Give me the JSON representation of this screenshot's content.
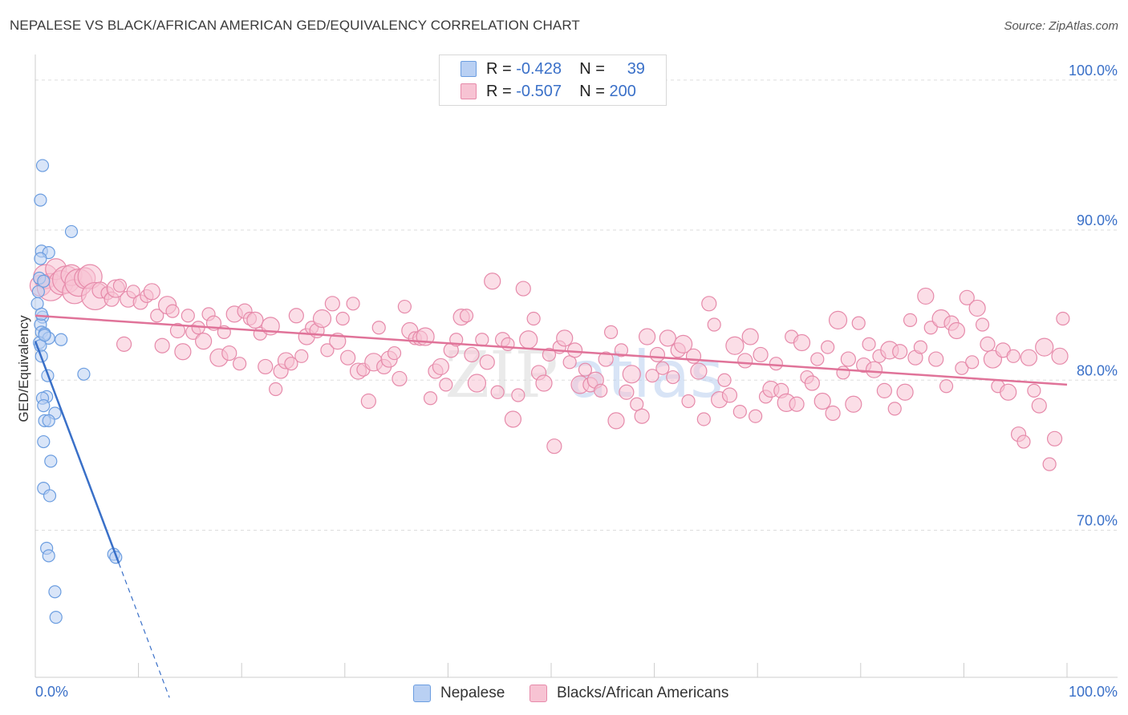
{
  "title": "NEPALESE VS BLACK/AFRICAN AMERICAN GED/EQUIVALENCY CORRELATION CHART",
  "source": "Source: ZipAtlas.com",
  "colors": {
    "blue": "#6b9de0",
    "blue_fill": "#b9d0f3",
    "blue_line": "#3a70c8",
    "pink": "#e68aaa",
    "pink_fill": "#f7c3d3",
    "pink_line": "#e07399",
    "axis_label": "#3a70c8",
    "grid": "#dddddd"
  },
  "legend_top": [
    {
      "r_label": "R =",
      "r_value": "-0.428",
      "n_label": "N =",
      "n_value": "39",
      "color_key": "blue"
    },
    {
      "r_label": "R =",
      "r_value": "-0.507",
      "n_label": "N =",
      "n_value": "200",
      "color_key": "pink"
    }
  ],
  "legend_bottom": [
    {
      "label": "Nepalese",
      "color_key": "blue"
    },
    {
      "label": "Blacks/African Americans",
      "color_key": "pink"
    }
  ],
  "watermark": {
    "zip": "ZIP",
    "atlas": "atlas"
  },
  "chart_data": {
    "type": "scatter",
    "ylabel": "GED/Equivalency",
    "xlabel": "",
    "x_tick_labels": {
      "left": "0.0%",
      "right": "100.0%"
    },
    "y_ticks": [
      {
        "value": 100,
        "label": "100.0%"
      },
      {
        "value": 90,
        "label": "90.0%"
      },
      {
        "value": 80,
        "label": "80.0%"
      },
      {
        "value": 70,
        "label": "70.0%"
      }
    ],
    "xlim": [
      0,
      100
    ],
    "ylim": [
      60.2,
      101.7
    ],
    "grid": "horizontal dashed",
    "legend_placement": "top-center",
    "series": [
      {
        "name": "Nepalese",
        "color_key": "blue",
        "r": -0.428,
        "n": 39,
        "trend": {
          "x0": 0,
          "y0": 82.6,
          "x1": 8.1,
          "y1": 67.8,
          "dash_to_x": 13.0
        },
        "points": [
          [
            0.7,
            94.3
          ],
          [
            0.5,
            92.0
          ],
          [
            3.5,
            89.9
          ],
          [
            0.6,
            88.6
          ],
          [
            1.3,
            88.5
          ],
          [
            0.5,
            88.1
          ],
          [
            0.4,
            86.8
          ],
          [
            0.8,
            86.6
          ],
          [
            0.3,
            85.9
          ],
          [
            0.2,
            85.1
          ],
          [
            0.7,
            84.2
          ],
          [
            0.5,
            83.7
          ],
          [
            0.6,
            83.2
          ],
          [
            0.9,
            83.1
          ],
          [
            1.3,
            82.8
          ],
          [
            2.5,
            82.7
          ],
          [
            0.4,
            82.5
          ],
          [
            0.5,
            82.3
          ],
          [
            0.6,
            81.6
          ],
          [
            1.2,
            80.3
          ],
          [
            4.7,
            80.4
          ],
          [
            1.1,
            78.9
          ],
          [
            0.7,
            78.8
          ],
          [
            0.8,
            78.3
          ],
          [
            1.9,
            77.8
          ],
          [
            0.9,
            77.3
          ],
          [
            1.3,
            77.3
          ],
          [
            0.8,
            75.9
          ],
          [
            1.5,
            74.6
          ],
          [
            0.8,
            72.8
          ],
          [
            1.4,
            72.3
          ],
          [
            1.1,
            68.8
          ],
          [
            1.3,
            68.3
          ],
          [
            7.6,
            68.4
          ],
          [
            7.8,
            68.2
          ],
          [
            1.9,
            65.9
          ],
          [
            2.0,
            64.2
          ],
          [
            0.9,
            83.0
          ],
          [
            0.6,
            84.4
          ]
        ]
      },
      {
        "name": "Blacks/African Americans",
        "color_key": "pink",
        "r": -0.507,
        "n": 200,
        "trend": {
          "x0": 0,
          "y0": 84.3,
          "x1": 100,
          "y1": 79.7
        },
        "points": [
          [
            0.5,
            86.3
          ],
          [
            1.0,
            86.9
          ],
          [
            1.5,
            86.2
          ],
          [
            2.0,
            87.4
          ],
          [
            2.5,
            86.5
          ],
          [
            3.0,
            86.7
          ],
          [
            3.5,
            87.0
          ],
          [
            3.8,
            85.9
          ],
          [
            4.2,
            86.5
          ],
          [
            4.8,
            86.8
          ],
          [
            5.3,
            86.9
          ],
          [
            5.8,
            85.6
          ],
          [
            6.3,
            86.0
          ],
          [
            7.0,
            85.8
          ],
          [
            7.4,
            85.4
          ],
          [
            7.8,
            86.1
          ],
          [
            8.2,
            86.3
          ],
          [
            8.6,
            82.4
          ],
          [
            9.0,
            85.4
          ],
          [
            9.5,
            85.9
          ],
          [
            10.2,
            85.2
          ],
          [
            10.8,
            85.6
          ],
          [
            11.3,
            85.9
          ],
          [
            11.8,
            84.3
          ],
          [
            12.3,
            82.3
          ],
          [
            12.8,
            85.0
          ],
          [
            13.3,
            84.6
          ],
          [
            13.8,
            83.3
          ],
          [
            14.3,
            81.9
          ],
          [
            14.8,
            84.3
          ],
          [
            15.3,
            83.2
          ],
          [
            15.8,
            83.5
          ],
          [
            16.3,
            82.6
          ],
          [
            16.8,
            84.4
          ],
          [
            17.3,
            83.8
          ],
          [
            17.8,
            81.5
          ],
          [
            18.3,
            83.2
          ],
          [
            18.8,
            81.8
          ],
          [
            19.3,
            84.4
          ],
          [
            19.8,
            81.1
          ],
          [
            20.3,
            84.6
          ],
          [
            20.8,
            84.1
          ],
          [
            21.3,
            84.0
          ],
          [
            21.8,
            83.1
          ],
          [
            22.3,
            80.9
          ],
          [
            22.8,
            83.6
          ],
          [
            23.3,
            79.4
          ],
          [
            23.8,
            80.6
          ],
          [
            24.3,
            81.3
          ],
          [
            24.8,
            81.1
          ],
          [
            25.3,
            84.3
          ],
          [
            25.8,
            81.6
          ],
          [
            26.3,
            82.9
          ],
          [
            26.8,
            83.5
          ],
          [
            27.3,
            83.3
          ],
          [
            27.8,
            84.1
          ],
          [
            28.3,
            82.0
          ],
          [
            28.8,
            85.1
          ],
          [
            29.3,
            82.6
          ],
          [
            29.8,
            84.1
          ],
          [
            30.3,
            81.5
          ],
          [
            30.8,
            85.1
          ],
          [
            31.3,
            80.6
          ],
          [
            31.8,
            80.7
          ],
          [
            32.3,
            78.6
          ],
          [
            32.8,
            81.2
          ],
          [
            33.3,
            83.5
          ],
          [
            33.8,
            80.9
          ],
          [
            34.3,
            81.4
          ],
          [
            34.8,
            81.8
          ],
          [
            35.3,
            80.1
          ],
          [
            35.8,
            84.9
          ],
          [
            36.3,
            83.3
          ],
          [
            36.8,
            82.8
          ],
          [
            37.3,
            82.8
          ],
          [
            37.8,
            82.9
          ],
          [
            38.3,
            78.8
          ],
          [
            38.8,
            80.6
          ],
          [
            39.3,
            80.9
          ],
          [
            39.8,
            79.7
          ],
          [
            40.3,
            82.0
          ],
          [
            40.8,
            82.7
          ],
          [
            41.3,
            84.2
          ],
          [
            41.8,
            84.3
          ],
          [
            42.3,
            81.7
          ],
          [
            42.8,
            79.8
          ],
          [
            43.3,
            82.7
          ],
          [
            43.8,
            81.2
          ],
          [
            44.3,
            86.6
          ],
          [
            44.8,
            79.2
          ],
          [
            45.3,
            82.7
          ],
          [
            45.8,
            82.4
          ],
          [
            46.3,
            77.4
          ],
          [
            46.8,
            79.0
          ],
          [
            47.3,
            86.1
          ],
          [
            47.8,
            82.7
          ],
          [
            48.3,
            84.1
          ],
          [
            48.8,
            80.5
          ],
          [
            49.3,
            79.8
          ],
          [
            49.8,
            81.7
          ],
          [
            50.3,
            75.6
          ],
          [
            50.8,
            82.2
          ],
          [
            51.3,
            82.8
          ],
          [
            51.8,
            81.2
          ],
          [
            52.3,
            82.0
          ],
          [
            52.8,
            79.7
          ],
          [
            53.3,
            80.7
          ],
          [
            53.8,
            79.7
          ],
          [
            54.3,
            80.0
          ],
          [
            54.8,
            79.3
          ],
          [
            55.3,
            81.4
          ],
          [
            55.8,
            83.2
          ],
          [
            56.3,
            77.3
          ],
          [
            56.8,
            82.0
          ],
          [
            57.3,
            79.2
          ],
          [
            57.8,
            80.4
          ],
          [
            58.3,
            78.4
          ],
          [
            58.8,
            77.6
          ],
          [
            59.3,
            82.9
          ],
          [
            59.8,
            80.3
          ],
          [
            60.3,
            81.7
          ],
          [
            60.8,
            80.8
          ],
          [
            61.3,
            82.8
          ],
          [
            61.8,
            80.2
          ],
          [
            62.3,
            82.0
          ],
          [
            62.8,
            82.4
          ],
          [
            63.3,
            78.6
          ],
          [
            63.8,
            81.6
          ],
          [
            64.3,
            80.6
          ],
          [
            64.8,
            77.4
          ],
          [
            65.3,
            85.1
          ],
          [
            65.8,
            83.7
          ],
          [
            66.3,
            78.7
          ],
          [
            66.8,
            80.0
          ],
          [
            67.3,
            79.0
          ],
          [
            67.8,
            82.3
          ],
          [
            68.3,
            77.9
          ],
          [
            68.8,
            81.3
          ],
          [
            69.3,
            82.9
          ],
          [
            69.8,
            77.6
          ],
          [
            70.3,
            81.7
          ],
          [
            70.8,
            78.9
          ],
          [
            71.3,
            79.4
          ],
          [
            71.8,
            81.1
          ],
          [
            72.3,
            79.3
          ],
          [
            72.8,
            78.5
          ],
          [
            73.3,
            82.9
          ],
          [
            73.8,
            78.4
          ],
          [
            74.3,
            82.5
          ],
          [
            74.8,
            80.2
          ],
          [
            75.3,
            79.8
          ],
          [
            75.8,
            81.4
          ],
          [
            76.3,
            78.6
          ],
          [
            76.8,
            82.2
          ],
          [
            77.3,
            77.8
          ],
          [
            77.8,
            84.0
          ],
          [
            78.3,
            80.5
          ],
          [
            78.8,
            81.4
          ],
          [
            79.3,
            78.4
          ],
          [
            79.8,
            83.8
          ],
          [
            80.3,
            81.0
          ],
          [
            80.8,
            82.4
          ],
          [
            81.3,
            80.7
          ],
          [
            81.8,
            81.6
          ],
          [
            82.3,
            79.3
          ],
          [
            82.8,
            82.0
          ],
          [
            83.3,
            78.1
          ],
          [
            83.8,
            81.9
          ],
          [
            84.3,
            79.2
          ],
          [
            84.8,
            84.0
          ],
          [
            85.3,
            81.5
          ],
          [
            85.8,
            82.2
          ],
          [
            86.3,
            85.6
          ],
          [
            86.8,
            83.5
          ],
          [
            87.3,
            81.4
          ],
          [
            87.8,
            84.1
          ],
          [
            88.3,
            79.6
          ],
          [
            88.8,
            83.8
          ],
          [
            89.3,
            83.3
          ],
          [
            89.8,
            80.8
          ],
          [
            90.3,
            85.5
          ],
          [
            90.8,
            81.2
          ],
          [
            91.3,
            84.8
          ],
          [
            91.8,
            83.7
          ],
          [
            92.3,
            82.4
          ],
          [
            92.8,
            81.4
          ],
          [
            93.3,
            79.6
          ],
          [
            93.8,
            82.0
          ],
          [
            94.3,
            79.2
          ],
          [
            94.8,
            81.6
          ],
          [
            95.3,
            76.4
          ],
          [
            95.8,
            75.9
          ],
          [
            96.3,
            81.5
          ],
          [
            96.8,
            79.3
          ],
          [
            97.3,
            78.3
          ],
          [
            97.8,
            82.2
          ],
          [
            98.3,
            74.4
          ],
          [
            98.8,
            76.1
          ],
          [
            99.3,
            81.6
          ],
          [
            99.6,
            84.1
          ]
        ]
      }
    ]
  }
}
